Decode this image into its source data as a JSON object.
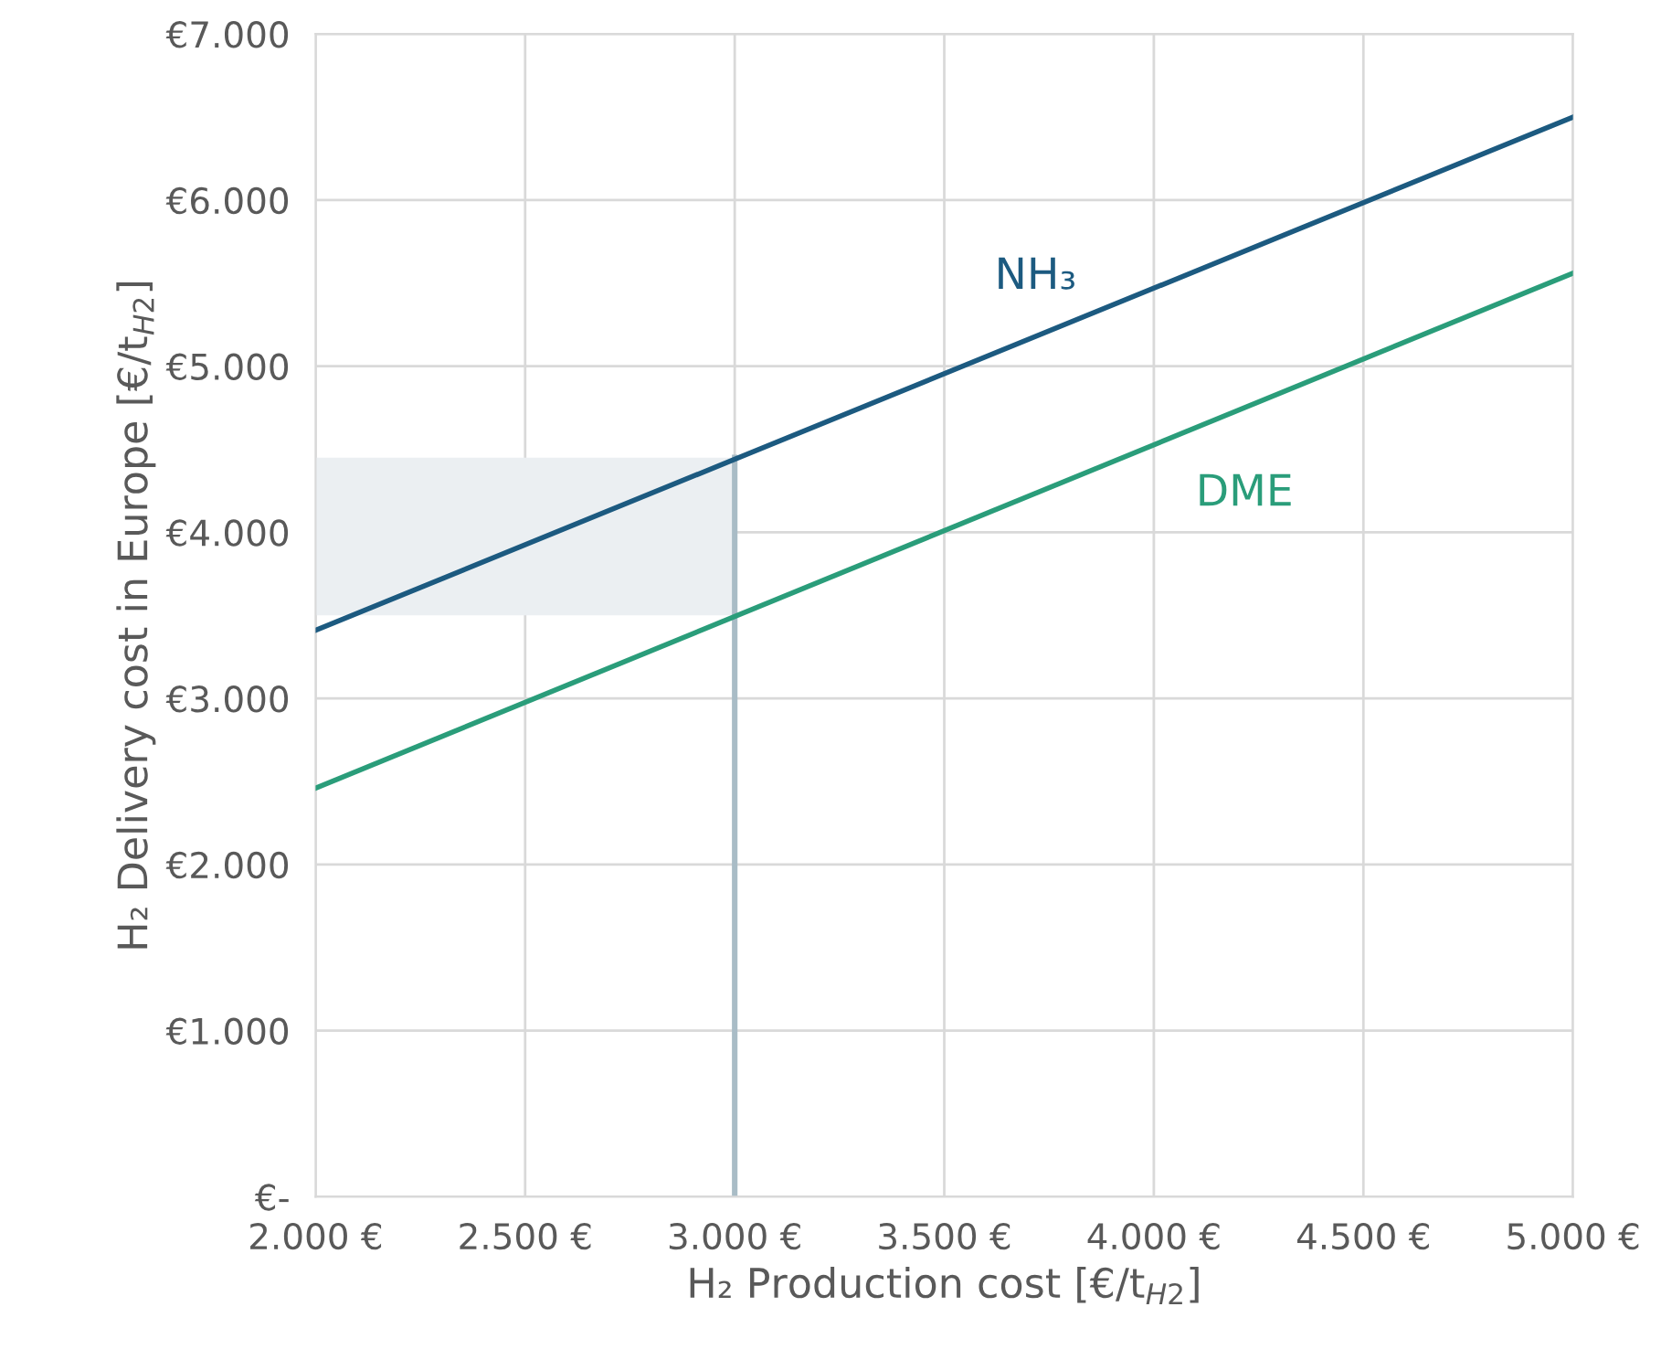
{
  "chart_data": {
    "type": "line",
    "xlabel": "H₂ Production cost [€/t$_{H2}$]",
    "ylabel": "H₂ Delivery cost in Europe [€/t$_{H2}$]",
    "x": [
      2000,
      5000
    ],
    "series": [
      {
        "name": "NH₃",
        "color": "#1c5a80",
        "values": [
          3410,
          6500
        ]
      },
      {
        "name": "DME",
        "color": "#2a9d7a",
        "values": [
          2460,
          5560
        ]
      }
    ],
    "ref_lines": [
      {
        "axis": "x",
        "value": 3000,
        "color": "#a9bcc6"
      }
    ],
    "bands": [
      {
        "axis": "y",
        "from": 3500,
        "to": 4450,
        "color": "#ebeff2"
      }
    ],
    "xlim": [
      2000,
      5000
    ],
    "xticks": [
      {
        "value": 2000,
        "label": "2.000 €"
      },
      {
        "value": 2500,
        "label": "2.500 €"
      },
      {
        "value": 3000,
        "label": "3.000 €"
      },
      {
        "value": 3500,
        "label": "3.500 €"
      },
      {
        "value": 4000,
        "label": "4.000 €"
      },
      {
        "value": 4500,
        "label": "4.500 €"
      },
      {
        "value": 5000,
        "label": "5.000 €"
      }
    ],
    "ylim": [
      0,
      7000
    ],
    "yticks": [
      {
        "value": 0,
        "label": "€-"
      },
      {
        "value": 1000,
        "label": "€1.000"
      },
      {
        "value": 2000,
        "label": "€2.000"
      },
      {
        "value": 3000,
        "label": "€3.000"
      },
      {
        "value": 4000,
        "label": "€4.000"
      },
      {
        "value": 5000,
        "label": "€5.000"
      },
      {
        "value": 6000,
        "label": "€6.000"
      },
      {
        "value": 7000,
        "label": "€7.000"
      }
    ],
    "grid": true
  }
}
